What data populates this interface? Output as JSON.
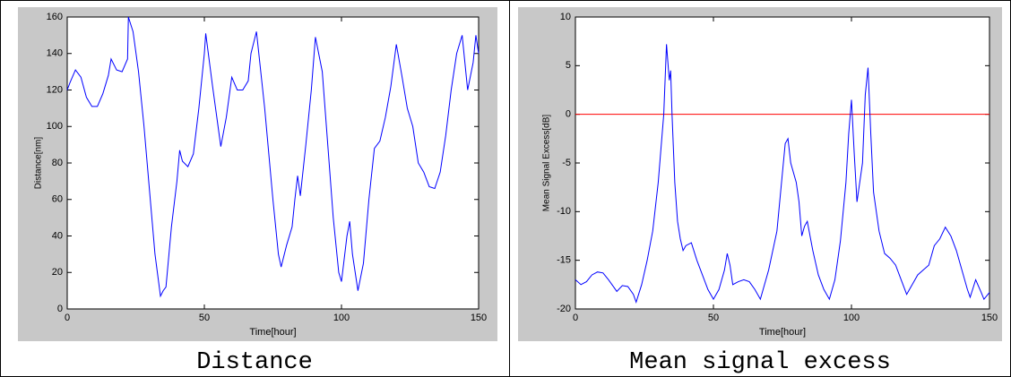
{
  "chart_data": [
    {
      "type": "line",
      "caption": "Distance",
      "xlabel": "Time[hour]",
      "ylabel": "Distance[nm]",
      "xlim": [
        0,
        150
      ],
      "xticks": [
        0,
        50,
        100,
        150
      ],
      "ylim": [
        0,
        160
      ],
      "yticks": [
        0,
        20,
        40,
        60,
        80,
        100,
        120,
        140,
        160
      ],
      "series": [
        {
          "color": "#0000ff",
          "x": [
            0,
            1,
            3,
            5,
            7,
            9,
            11,
            13,
            15,
            16,
            18,
            20,
            22,
            22.3,
            24,
            26,
            28,
            30,
            32,
            34,
            35,
            36,
            38,
            40,
            41,
            42,
            44,
            46,
            48,
            50,
            50.5,
            53,
            55,
            56,
            58,
            60,
            62,
            64,
            66,
            67,
            69,
            72,
            75,
            77,
            78,
            80,
            82,
            83,
            84,
            85,
            87,
            89,
            90.5,
            93,
            95,
            97,
            99,
            100,
            102,
            103,
            104,
            106,
            108,
            110,
            112,
            114,
            116,
            118,
            120,
            122,
            124,
            126,
            128,
            130,
            132,
            134,
            136,
            138,
            140,
            142,
            144,
            145,
            146,
            148,
            149,
            150
          ],
          "values": [
            120,
            124,
            131,
            127,
            116,
            111,
            111,
            118,
            128,
            137,
            131,
            130,
            137,
            160,
            152,
            130,
            100,
            65,
            30,
            7,
            10,
            12,
            45,
            70,
            87,
            81,
            78,
            85,
            110,
            140,
            151,
            122,
            100,
            89,
            105,
            127,
            120,
            120,
            125,
            140,
            152,
            110,
            60,
            30,
            23,
            35,
            45,
            60,
            73,
            62,
            90,
            120,
            149,
            130,
            90,
            50,
            20,
            15,
            40,
            48,
            30,
            10,
            25,
            60,
            88,
            92,
            105,
            122,
            145,
            128,
            110,
            100,
            80,
            75,
            67,
            66,
            75,
            95,
            120,
            140,
            150,
            135,
            120,
            135,
            150,
            140
          ]
        }
      ]
    },
    {
      "type": "line",
      "caption": "Mean signal excess",
      "xlabel": "Time[hour]",
      "ylabel": "Mean Signal Excess[dB]",
      "xlim": [
        0,
        150
      ],
      "xticks": [
        0,
        50,
        100,
        150
      ],
      "ylim": [
        -20,
        10
      ],
      "yticks": [
        -20,
        -15,
        -10,
        -5,
        0,
        5,
        10
      ],
      "hline": {
        "value": 0,
        "color": "#ff0000"
      },
      "series": [
        {
          "color": "#0000ff",
          "x": [
            0,
            2,
            4,
            6,
            8,
            10,
            12,
            14,
            15,
            17,
            19,
            21,
            22,
            24,
            26,
            28,
            30,
            32,
            33,
            34,
            34.5,
            35,
            36,
            37,
            38,
            39,
            40,
            42,
            44,
            46,
            48,
            50,
            52,
            54,
            55,
            56,
            57,
            59,
            61,
            63,
            65,
            67,
            70,
            73,
            75,
            76,
            77,
            78,
            80,
            81,
            82,
            83,
            84,
            86,
            88,
            90,
            92,
            94,
            96,
            98,
            99,
            100,
            101,
            102,
            104,
            105,
            106,
            107,
            108,
            110,
            112,
            114,
            116,
            118,
            120,
            122,
            124,
            126,
            128,
            130,
            132,
            134,
            136,
            138,
            140,
            142,
            143,
            145,
            147,
            148,
            150
          ],
          "values": [
            -17,
            -17.5,
            -17.2,
            -16.5,
            -16.2,
            -16.3,
            -17,
            -17.8,
            -18.2,
            -17.6,
            -17.7,
            -18.5,
            -19.3,
            -17.5,
            -15,
            -12,
            -7,
            0,
            7.2,
            3.5,
            4.5,
            0,
            -7,
            -11,
            -12.8,
            -14,
            -13.5,
            -13.2,
            -15,
            -16.5,
            -18,
            -19,
            -18,
            -16,
            -14.3,
            -15.5,
            -17.5,
            -17.2,
            -17,
            -17.2,
            -18,
            -19,
            -16,
            -12,
            -6,
            -3,
            -2.5,
            -5,
            -7,
            -9,
            -12.5,
            -11.5,
            -11,
            -14,
            -16.5,
            -18,
            -19,
            -17,
            -13,
            -7,
            -2,
            1.5,
            -4,
            -9,
            -5,
            2,
            4.8,
            -2,
            -8,
            -12,
            -14.3,
            -14.8,
            -15.5,
            -17,
            -18.5,
            -17.5,
            -16.5,
            -16,
            -15.5,
            -13.5,
            -12.8,
            -11.6,
            -12.5,
            -14,
            -16,
            -18,
            -18.8,
            -17,
            -18.3,
            -19,
            -18.3
          ]
        }
      ]
    }
  ]
}
